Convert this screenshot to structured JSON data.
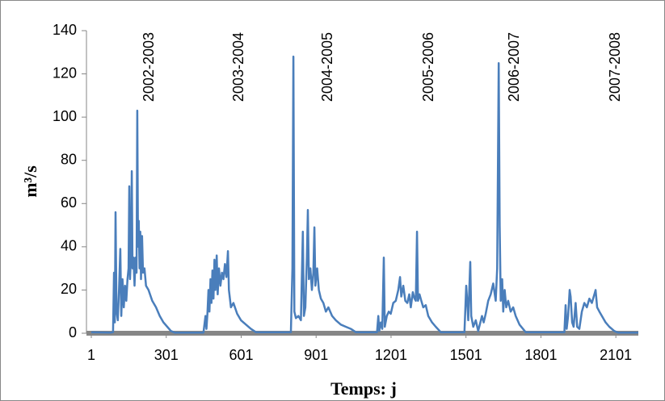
{
  "chart_data": {
    "type": "line",
    "y_label": "m³/s",
    "x_label": "Temps: j",
    "annotations": [
      "2002-2003",
      "2003-2004",
      "2004-2005",
      "2005-2006",
      "2006-2007",
      "2007-2008"
    ],
    "xlim": [
      1,
      2191
    ],
    "xticks": [
      1,
      301,
      601,
      901,
      1201,
      1501,
      1801,
      2101
    ],
    "ylim": [
      0,
      140
    ],
    "yticks": [
      0,
      20,
      40,
      60,
      80,
      100,
      120,
      140
    ],
    "x": [
      1,
      80,
      88,
      92,
      95,
      98,
      102,
      107,
      112,
      117,
      121,
      126,
      131,
      136,
      141,
      146,
      150,
      153,
      156,
      160,
      163,
      166,
      170,
      174,
      178,
      182,
      185,
      188,
      191,
      194,
      197,
      200,
      204,
      208,
      214,
      220,
      230,
      245,
      260,
      275,
      290,
      305,
      320,
      335,
      450,
      458,
      462,
      466,
      470,
      474,
      478,
      482,
      486,
      490,
      494,
      498,
      503,
      507,
      512,
      518,
      524,
      530,
      536,
      542,
      548,
      552,
      560,
      570,
      585,
      600,
      620,
      640,
      660,
      800,
      806,
      810,
      814,
      820,
      830,
      840,
      848,
      852,
      858,
      864,
      868,
      872,
      878,
      884,
      890,
      894,
      898,
      905,
      912,
      920,
      930,
      940,
      950,
      965,
      980,
      1000,
      1020,
      1040,
      1060,
      1145,
      1150,
      1154,
      1160,
      1166,
      1172,
      1176,
      1184,
      1192,
      1200,
      1210,
      1220,
      1230,
      1237,
      1242,
      1250,
      1258,
      1266,
      1274,
      1280,
      1288,
      1295,
      1300,
      1305,
      1309,
      1315,
      1322,
      1330,
      1340,
      1350,
      1365,
      1380,
      1400,
      1495,
      1502,
      1506,
      1510,
      1518,
      1522,
      1530,
      1540,
      1550,
      1565,
      1572,
      1580,
      1590,
      1600,
      1610,
      1620,
      1626,
      1632,
      1636,
      1640,
      1646,
      1650,
      1656,
      1662,
      1670,
      1680,
      1690,
      1700,
      1715,
      1740,
      1895,
      1900,
      1904,
      1910,
      1916,
      1920,
      1926,
      1932,
      1940,
      1946,
      1955,
      1965,
      1975,
      1985,
      1995,
      2005,
      2015,
      2020,
      2026,
      2035,
      2045,
      2060,
      2075,
      2095,
      2110,
      2191
    ],
    "series": [
      {
        "color": "#4a7ebb",
        "values": [
          0.5,
          0.3,
          0.5,
          28,
          5,
          56,
          10,
          6,
          20,
          39,
          8,
          25,
          12,
          22,
          15,
          25,
          30,
          68,
          25,
          37,
          75,
          30,
          35,
          22,
          35,
          28,
          103,
          40,
          52,
          30,
          47,
          25,
          45,
          28,
          30,
          22,
          20,
          15,
          12,
          8,
          5,
          3,
          1,
          0.3,
          0.3,
          8,
          2,
          9,
          20,
          10,
          25,
          14,
          29,
          16,
          34,
          20,
          36,
          18,
          30,
          22,
          28,
          25,
          32,
          26,
          38,
          20,
          12,
          14,
          9,
          6,
          4,
          2,
          0.5,
          0.5,
          30,
          128,
          10,
          7,
          8,
          6,
          47,
          8,
          12,
          35,
          57,
          25,
          30,
          20,
          28,
          49,
          22,
          30,
          20,
          16,
          14,
          10,
          12,
          8,
          6,
          4,
          3,
          2,
          0.5,
          0.5,
          8,
          1,
          5,
          2,
          35,
          3,
          8,
          10,
          9,
          14,
          15,
          20,
          26,
          17,
          22,
          15,
          14,
          18,
          12,
          19,
          16,
          15,
          47,
          15,
          18,
          15,
          12,
          13,
          8,
          5,
          3,
          0.5,
          0.5,
          22,
          15,
          6,
          33,
          8,
          3,
          6,
          1,
          8,
          5,
          9,
          15,
          18,
          23,
          15,
          30,
          125,
          50,
          15,
          25,
          10,
          20,
          12,
          15,
          10,
          12,
          8,
          4,
          0.5,
          0.5,
          13,
          2,
          8,
          20,
          17,
          5,
          3,
          14,
          3,
          2,
          10,
          14,
          12,
          16,
          14,
          18,
          20,
          12,
          10,
          8,
          5,
          3,
          1,
          0.3,
          0.3
        ]
      }
    ]
  }
}
